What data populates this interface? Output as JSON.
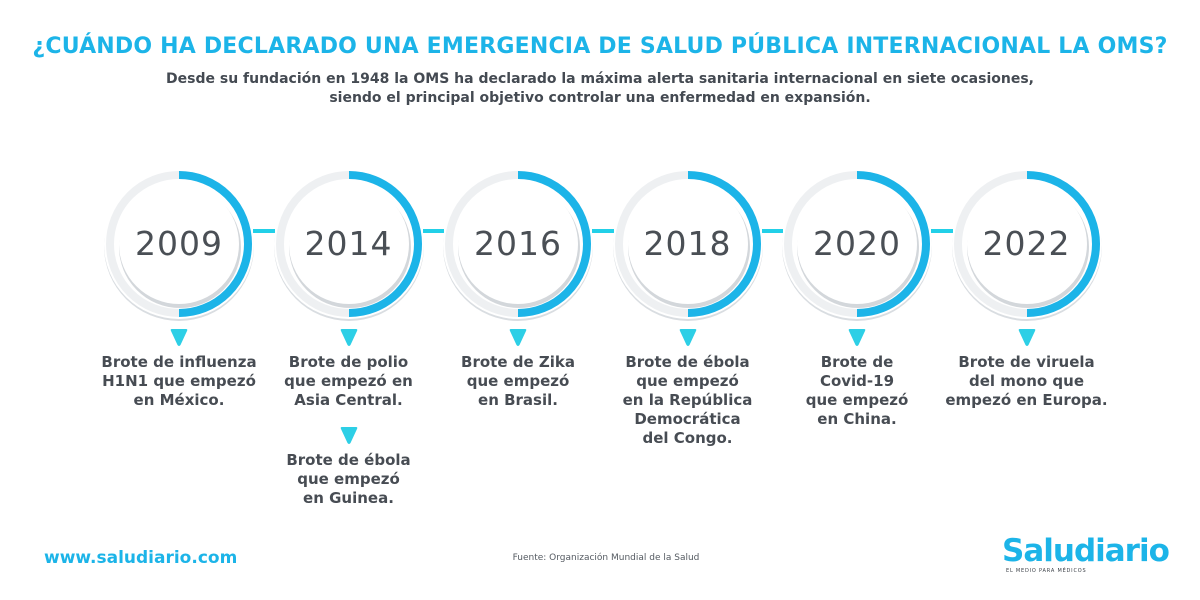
{
  "header": {
    "title": "¿CUÁNDO HA DECLARADO UNA EMERGENCIA DE SALUD PÚBLICA INTERNACIONAL LA OMS?",
    "subtitle_line1": "Desde su fundación en 1948 la OMS ha declarado la máxima alerta sanitaria internacional en siete ocasiones,",
    "subtitle_line2": "siendo el principal objetivo controlar una enfermedad en expansión."
  },
  "timeline": [
    {
      "year": "2009",
      "events": [
        {
          "lines": [
            "Brote de influenza",
            "H1N1 que empezó",
            "en México."
          ]
        }
      ]
    },
    {
      "year": "2014",
      "events": [
        {
          "lines": [
            "Brote de polio",
            "que empezó en",
            "Asia Central."
          ]
        },
        {
          "lines": [
            "Brote de ébola",
            "que empezó",
            "en Guinea."
          ]
        }
      ]
    },
    {
      "year": "2016",
      "events": [
        {
          "lines": [
            "Brote de Zika",
            "que empezó",
            "en Brasil."
          ]
        }
      ]
    },
    {
      "year": "2018",
      "events": [
        {
          "lines": [
            "Brote de ébola",
            "que empezó",
            "en la República",
            "Democrática",
            "del Congo."
          ]
        }
      ]
    },
    {
      "year": "2020",
      "events": [
        {
          "lines": [
            "Brote de",
            "Covid-19",
            "que empezó",
            "en China."
          ]
        }
      ]
    },
    {
      "year": "2022",
      "events": [
        {
          "lines": [
            "Brote de viruela",
            "del mono que",
            "empezó en Europa."
          ]
        }
      ]
    }
  ],
  "footer": {
    "website": "www.saludiario.com",
    "source": "Fuente: Organización Mundial de la Salud",
    "logo_name": "Saludiario",
    "logo_tagline": "EL MEDIO PARA MÉDICOS"
  },
  "colors": {
    "accent": "#1cb4e8",
    "connector": "#22d0e8",
    "marker": "#2dcfe6",
    "text": "#474c53"
  }
}
